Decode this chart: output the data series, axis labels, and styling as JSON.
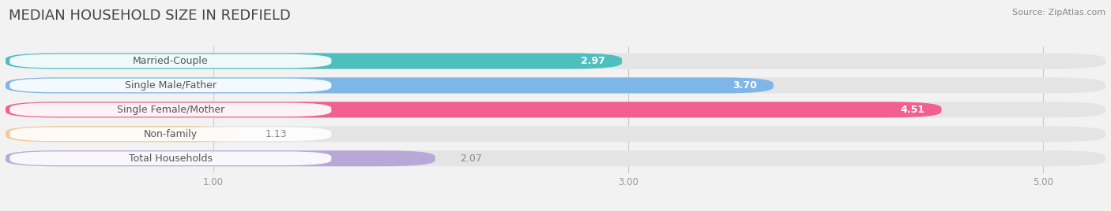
{
  "title": "MEDIAN HOUSEHOLD SIZE IN REDFIELD",
  "source": "Source: ZipAtlas.com",
  "categories": [
    "Married-Couple",
    "Single Male/Father",
    "Single Female/Mother",
    "Non-family",
    "Total Households"
  ],
  "values": [
    2.97,
    3.7,
    4.51,
    1.13,
    2.07
  ],
  "bar_colors": [
    "#4DBFBF",
    "#7EB6E8",
    "#F06090",
    "#F5C89A",
    "#B8A8D8"
  ],
  "background_color": "#f2f2f2",
  "bar_bg_color": "#e4e4e4",
  "label_pill_color": "#ffffff",
  "label_text_color": "#555555",
  "xlim": [
    0,
    5.3
  ],
  "xmin": 0,
  "xticks": [
    1.0,
    3.0,
    5.0
  ],
  "title_fontsize": 13,
  "source_fontsize": 8,
  "label_fontsize": 9,
  "value_fontsize": 9
}
